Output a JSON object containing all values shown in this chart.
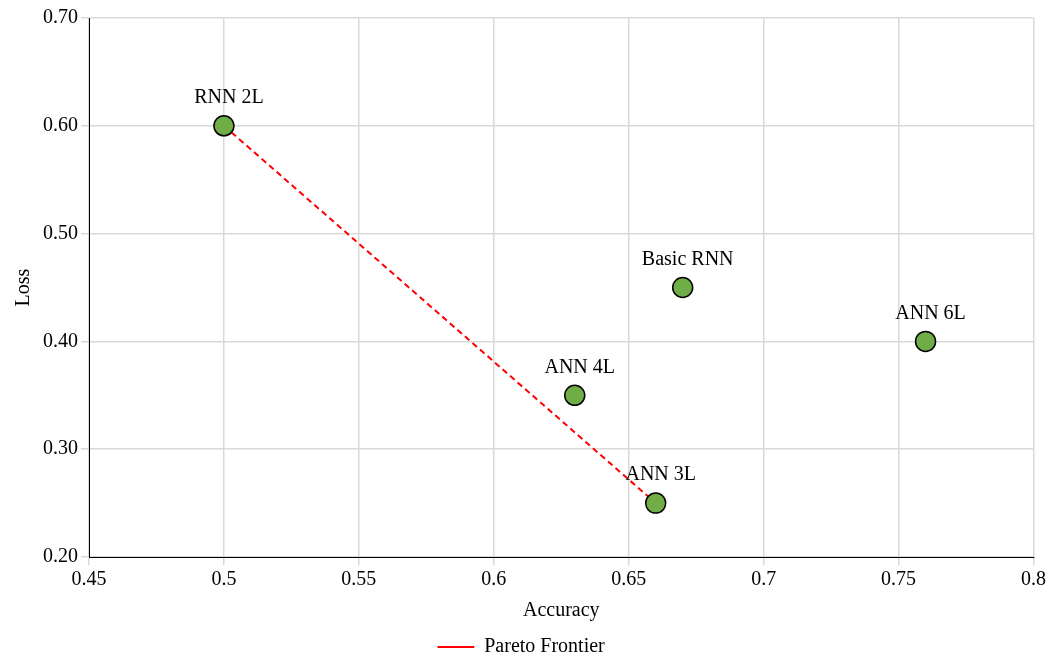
{
  "chart_data": {
    "type": "scatter",
    "xlabel": "Accuracy",
    "ylabel": "Loss",
    "xlim": [
      0.45,
      0.8
    ],
    "xticks": [
      0.45,
      0.5,
      0.55,
      0.6,
      0.65,
      0.7,
      0.75,
      0.8
    ],
    "ylim": [
      0.2,
      0.7
    ],
    "yticks": [
      {
        "value": 0.2,
        "label": "0.20"
      },
      {
        "value": 0.3,
        "label": "0.30"
      },
      {
        "value": 0.4,
        "label": "0.40"
      },
      {
        "value": 0.5,
        "label": "0.50"
      },
      {
        "value": 0.6,
        "label": "0.60"
      },
      {
        "value": 0.7,
        "label": "0.70"
      }
    ],
    "grid": true,
    "legend": "bottom",
    "series": [
      {
        "type": "scatter",
        "color": "#70ad47",
        "marker": "circle",
        "x": [
          0.5,
          0.63,
          0.66,
          0.67,
          0.76
        ],
        "values": [
          0.6,
          0.35,
          0.25,
          0.45,
          0.4
        ]
      },
      {
        "type": "line",
        "name": "Pareto Frontier",
        "color": "#ff0000",
        "line_style": "dashed",
        "marker": "none",
        "x": [
          0.5,
          0.66
        ],
        "values": [
          0.6,
          0.25
        ]
      }
    ],
    "annotations": [
      {
        "text": "RNN 2L",
        "x": 0.5,
        "y": 0.6
      },
      {
        "text": "ANN 4L",
        "x": 0.63,
        "y": 0.35
      },
      {
        "text": "ANN 3L",
        "x": 0.66,
        "y": 0.25
      },
      {
        "text": "Basic RNN",
        "x": 0.67,
        "y": 0.45
      },
      {
        "text": "ANN 6L",
        "x": 0.76,
        "y": 0.4
      }
    ]
  }
}
